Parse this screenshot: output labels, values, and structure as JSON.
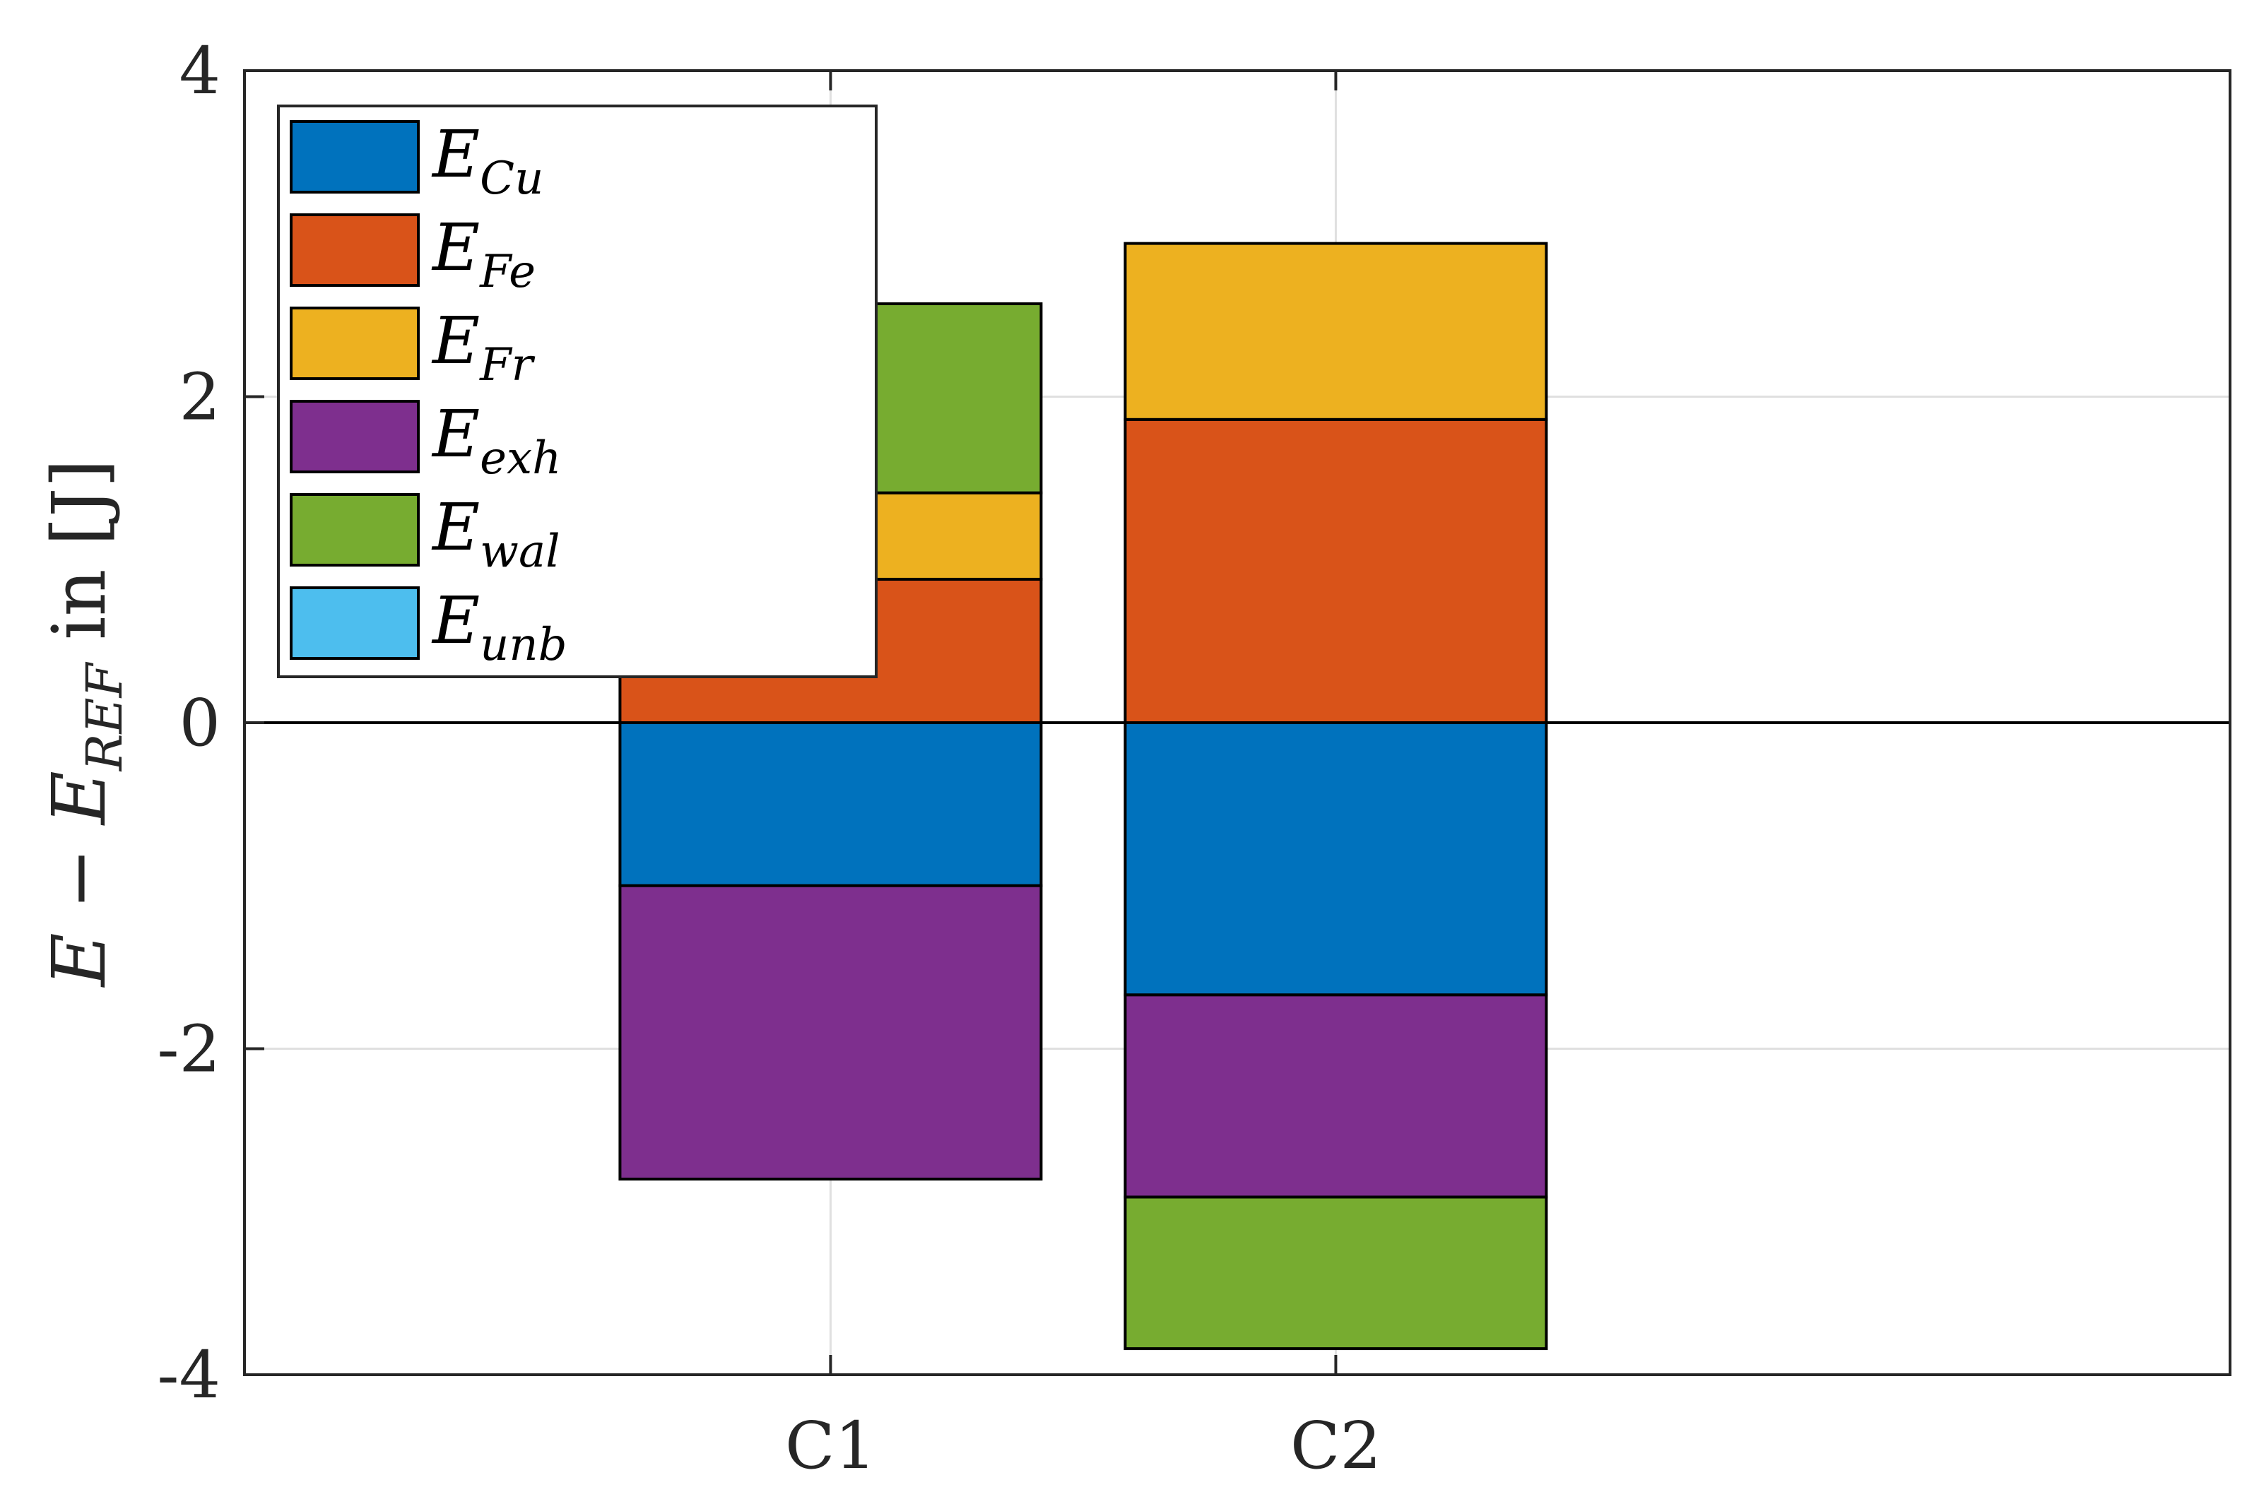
{
  "chart_data": {
    "type": "bar",
    "stacked": true,
    "categories": [
      "C1",
      "C2"
    ],
    "ylabel": {
      "main": "E − E",
      "sub": "REF",
      "rest": " in [J]"
    },
    "ylim": [
      -4,
      4
    ],
    "yticks": [
      4,
      2,
      0,
      -2,
      -4
    ],
    "ytick_labels": [
      "4",
      "2",
      "0",
      "-2",
      "-4"
    ],
    "grid": true,
    "legend_position": "top-left",
    "series": [
      {
        "name": "E",
        "sub": "Cu",
        "color": "#0072BD",
        "values": [
          -1.0,
          -1.67
        ]
      },
      {
        "name": "E",
        "sub": "Fe",
        "color": "#D95319",
        "values": [
          0.88,
          1.86
        ]
      },
      {
        "name": "E",
        "sub": "Fr",
        "color": "#EDB120",
        "values": [
          0.53,
          1.08
        ]
      },
      {
        "name": "E",
        "sub": "exh",
        "color": "#7E2F8E",
        "values": [
          -1.8,
          -1.24
        ]
      },
      {
        "name": "E",
        "sub": "wal",
        "color": "#77AC30",
        "values": [
          1.16,
          -0.93
        ]
      },
      {
        "name": "E",
        "sub": "unb",
        "color": "#4DBEEE",
        "values": [
          0,
          0
        ]
      }
    ]
  }
}
